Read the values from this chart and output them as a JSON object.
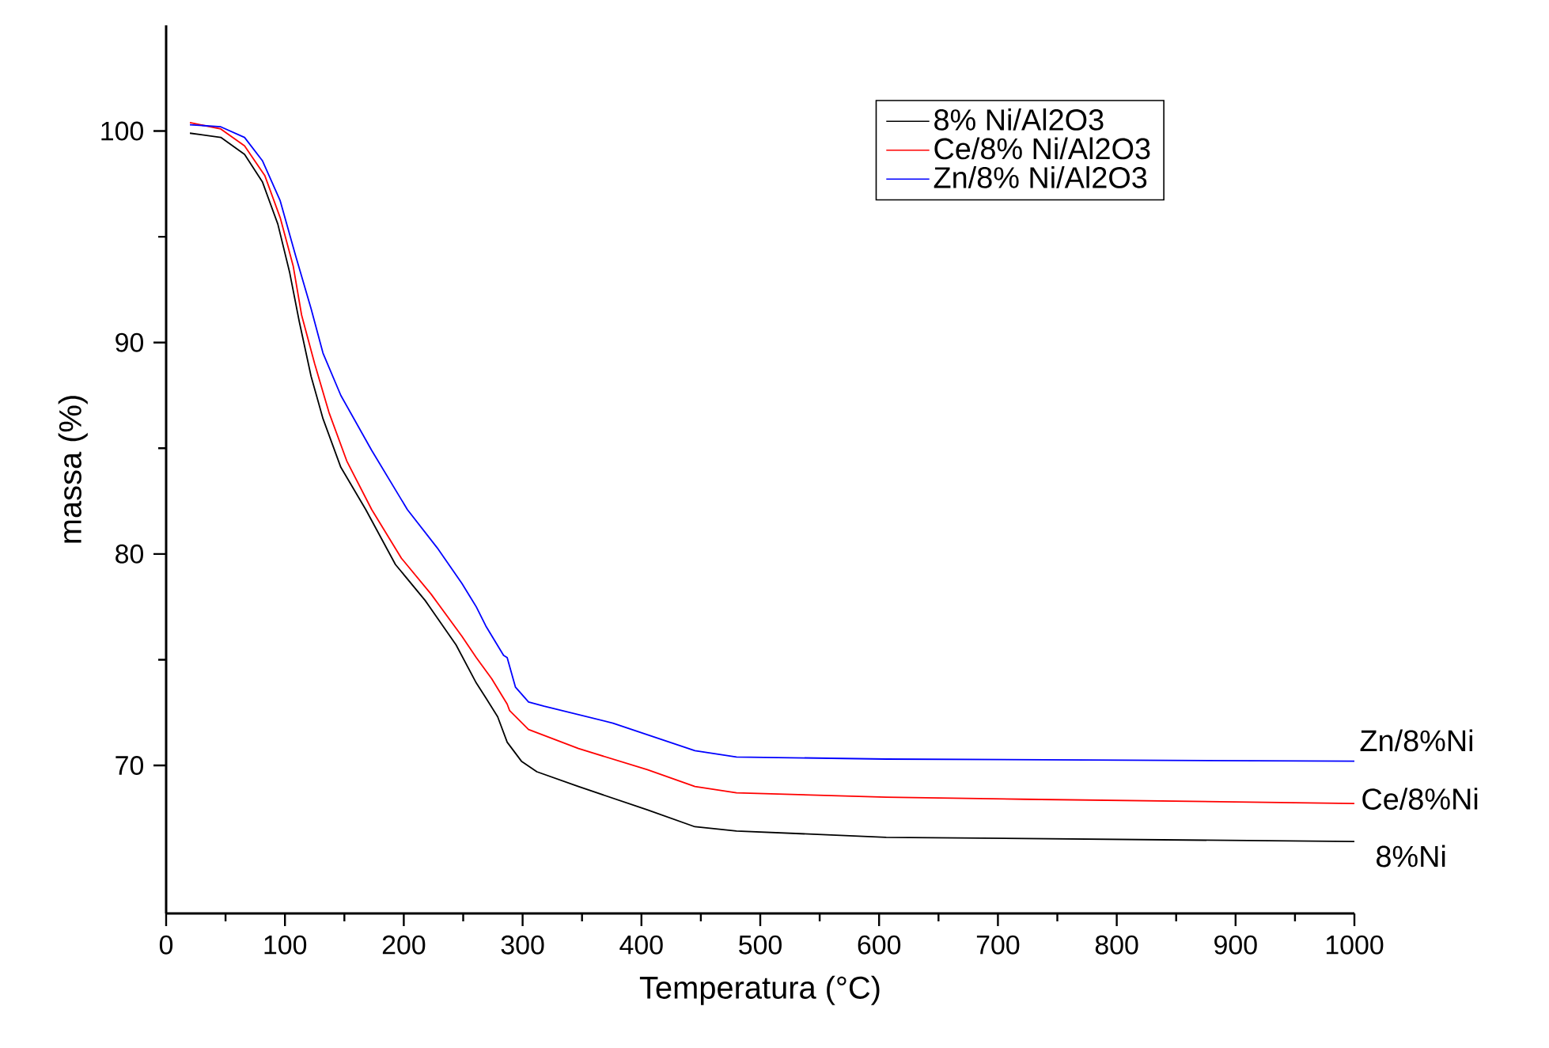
{
  "chart_data": {
    "type": "line",
    "xlabel": "Temperatura (°C)",
    "ylabel": "massa (%)",
    "xlim": [
      0,
      1000
    ],
    "ylim": [
      63,
      105
    ],
    "xticks": [
      0,
      100,
      200,
      300,
      400,
      500,
      600,
      700,
      800,
      900,
      1000
    ],
    "yticks": [
      70,
      80,
      90,
      100
    ],
    "legend": "top right",
    "grid": false,
    "marker": "none",
    "line_style": "solid",
    "series": [
      {
        "name": "8% Ni/Al2O3",
        "color": "#000000",
        "x": [
          20,
          46,
          66,
          81,
          94,
          104,
          112,
          122,
          132,
          147,
          168,
          193,
          218,
          244,
          261,
          269,
          279,
          287,
          299,
          312,
          347,
          405,
          445,
          480,
          606,
          1000
        ],
        "values": [
          99.9,
          99.7,
          98.9,
          97.6,
          95.6,
          93.3,
          91.0,
          88.4,
          86.4,
          84.1,
          82.1,
          79.5,
          77.8,
          75.7,
          73.9,
          73.2,
          72.3,
          71.1,
          70.2,
          69.7,
          69.0,
          67.9,
          67.1,
          66.9,
          66.6,
          66.4
        ]
      },
      {
        "name": "Ce/8% Ni/Al2O3",
        "color": "#ff0000",
        "x": [
          20,
          46,
          66,
          83,
          96,
          107,
          114,
          125,
          137,
          152,
          173,
          198,
          223,
          249,
          261,
          274,
          287,
          289,
          305,
          347,
          405,
          445,
          480,
          606,
          722,
          1000
        ],
        "values": [
          100.4,
          100.1,
          99.3,
          97.9,
          95.9,
          93.6,
          91.3,
          89.0,
          86.7,
          84.4,
          82.1,
          79.8,
          78.1,
          76.1,
          75.1,
          74.1,
          72.9,
          72.6,
          71.7,
          70.8,
          69.8,
          69.0,
          68.7,
          68.5,
          68.4,
          68.2
        ]
      },
      {
        "name": "Zn/8% Ni/Al2O3",
        "color": "#0000ff",
        "x": [
          20,
          46,
          66,
          81,
          96,
          109,
          122,
          132,
          147,
          173,
          203,
          228,
          249,
          261,
          269,
          284,
          287,
          294,
          305,
          318,
          376,
          445,
          480,
          606,
          1000
        ],
        "values": [
          100.3,
          100.2,
          99.7,
          98.6,
          96.7,
          94.1,
          91.6,
          89.5,
          87.5,
          84.9,
          82.1,
          80.3,
          78.6,
          77.5,
          76.6,
          75.2,
          75.1,
          73.7,
          73.0,
          72.8,
          72.0,
          70.7,
          70.4,
          70.3,
          70.2
        ]
      }
    ],
    "annotations": [
      "Zn/8%Ni",
      "Ce/8%Ni",
      "8%Ni"
    ]
  }
}
